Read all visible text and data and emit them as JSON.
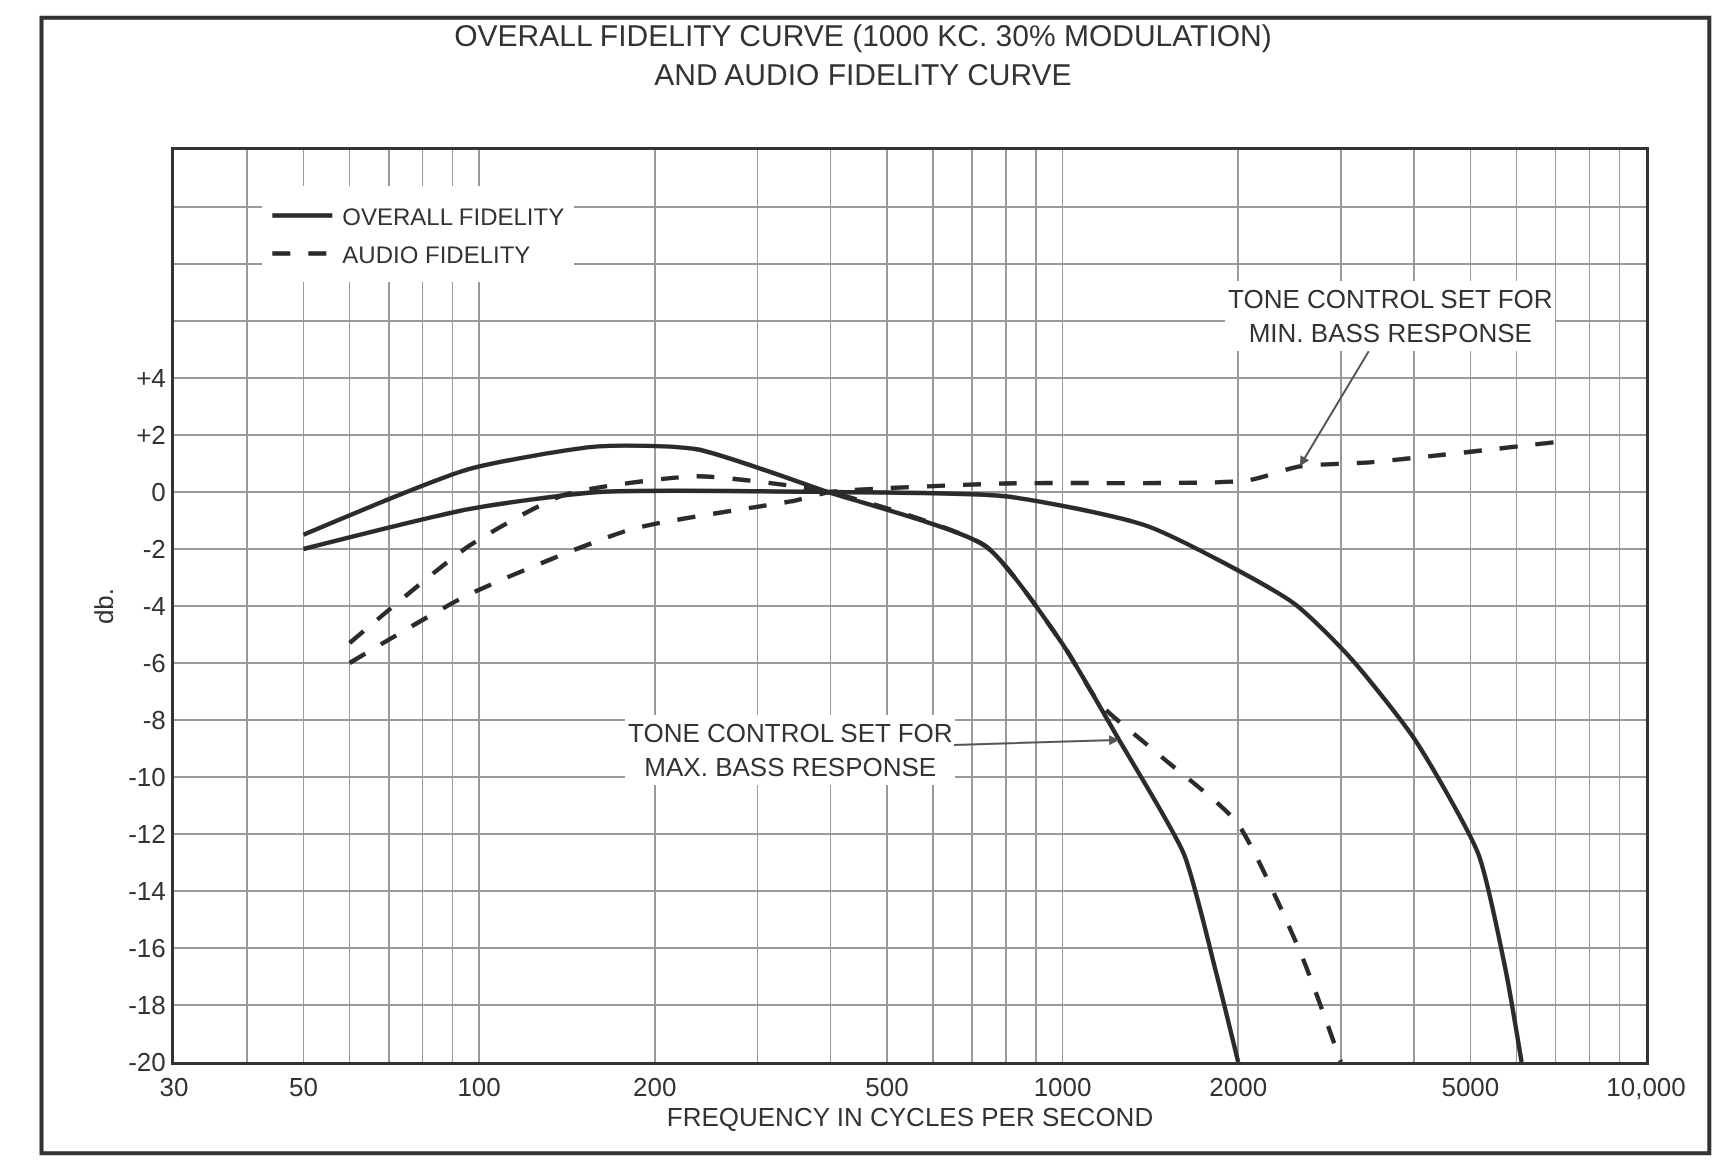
{
  "chart_data": {
    "type": "line",
    "title": "OVERALL FIDELITY CURVE (1000 KC. 30% MODULATION)\nAND AUDIO FIDELITY CURVE",
    "xlabel": "FREQUENCY IN CYCLES PER SECOND",
    "ylabel": "db.",
    "log": "x",
    "xlim": [
      30,
      10000
    ],
    "xticks": [
      30,
      {
        "value": 40,
        "label": null
      },
      50,
      {
        "value": 60,
        "label": null
      },
      {
        "value": 70,
        "label": null
      },
      {
        "value": 80,
        "label": null
      },
      {
        "value": 90,
        "label": null
      },
      100,
      200,
      {
        "value": 300,
        "label": null
      },
      {
        "value": 400,
        "label": null
      },
      500,
      {
        "value": 600,
        "label": null
      },
      {
        "value": 700,
        "label": null
      },
      {
        "value": 800,
        "label": null
      },
      {
        "value": 900,
        "label": null
      },
      1000,
      2000,
      {
        "value": 3000,
        "label": null
      },
      {
        "value": 4000,
        "label": null
      },
      5000,
      {
        "value": 6000,
        "label": null
      },
      {
        "value": 7000,
        "label": null
      },
      {
        "value": 8000,
        "label": null
      },
      {
        "value": 9000,
        "label": null
      },
      {
        "value": 10000,
        "label": "10,000"
      }
    ],
    "ylim": [
      -20,
      12
    ],
    "yticks": [
      -20,
      -18,
      -16,
      -14,
      -12,
      -10,
      -8,
      -6,
      -4,
      -2,
      0,
      {
        "value": 2,
        "label": "+2"
      },
      {
        "value": 4,
        "label": "+4"
      },
      {
        "value": 6,
        "label": null
      },
      {
        "value": 8,
        "label": null
      },
      {
        "value": 10,
        "label": null
      }
    ],
    "grid": true,
    "legend": "top left",
    "series": [
      {
        "name": "OVERALL FIDELITY",
        "color": "#2b2b2b",
        "line_style": "solid",
        "x": [
          50,
          96,
          160,
          236,
          396,
          738,
          1005,
          1250,
          1614,
          1830,
          2000
        ],
        "values": [
          -1.5,
          0.8,
          1.6,
          1.5,
          0,
          -1.9,
          -5.4,
          -8.7,
          -12.7,
          -16.8,
          -20
        ]
      },
      {
        "color": "#2b2b2b",
        "line_style": "solid",
        "x": [
          50,
          96,
          160,
          400,
          798,
          1400,
          2490,
          3140,
          4020,
          5160,
          5750,
          6120
        ],
        "values": [
          -2,
          -0.6,
          0,
          0,
          -0.15,
          -1.2,
          -3.9,
          -5.9,
          -8.7,
          -12.7,
          -16.8,
          -20
        ]
      },
      {
        "name": "AUDIO FIDELITY",
        "color": "#2b2b2b",
        "line_style": "dashed",
        "x": [
          60,
          96,
          140,
          236,
          348,
          400,
          738,
          1005,
          1155,
          1480,
          1990,
          2550,
          3000
        ],
        "values": [
          -5.3,
          -1.9,
          -0.1,
          0.55,
          0.2,
          0,
          -1.9,
          -5.4,
          -7.4,
          -9.3,
          -11.6,
          -16.1,
          -20
        ]
      },
      {
        "color": "#2b2b2b",
        "line_style": "dashed",
        "x": [
          60,
          96,
          183,
          348,
          400,
          798,
          2065,
          2550,
          3400,
          7000
        ],
        "values": [
          -6,
          -3.6,
          -1.3,
          -0.3,
          0,
          0.3,
          0.4,
          0.9,
          1.05,
          1.75
        ]
      }
    ],
    "annotations": [
      {
        "text": "TONE CONTROL SET FOR\nMIN. BASS RESPONSE",
        "x": 2550,
        "y": 0.9
      },
      {
        "text": "TONE CONTROL SET FOR\nMAX. BASS RESPONSE",
        "x": 1250,
        "y": -8.7
      }
    ]
  }
}
